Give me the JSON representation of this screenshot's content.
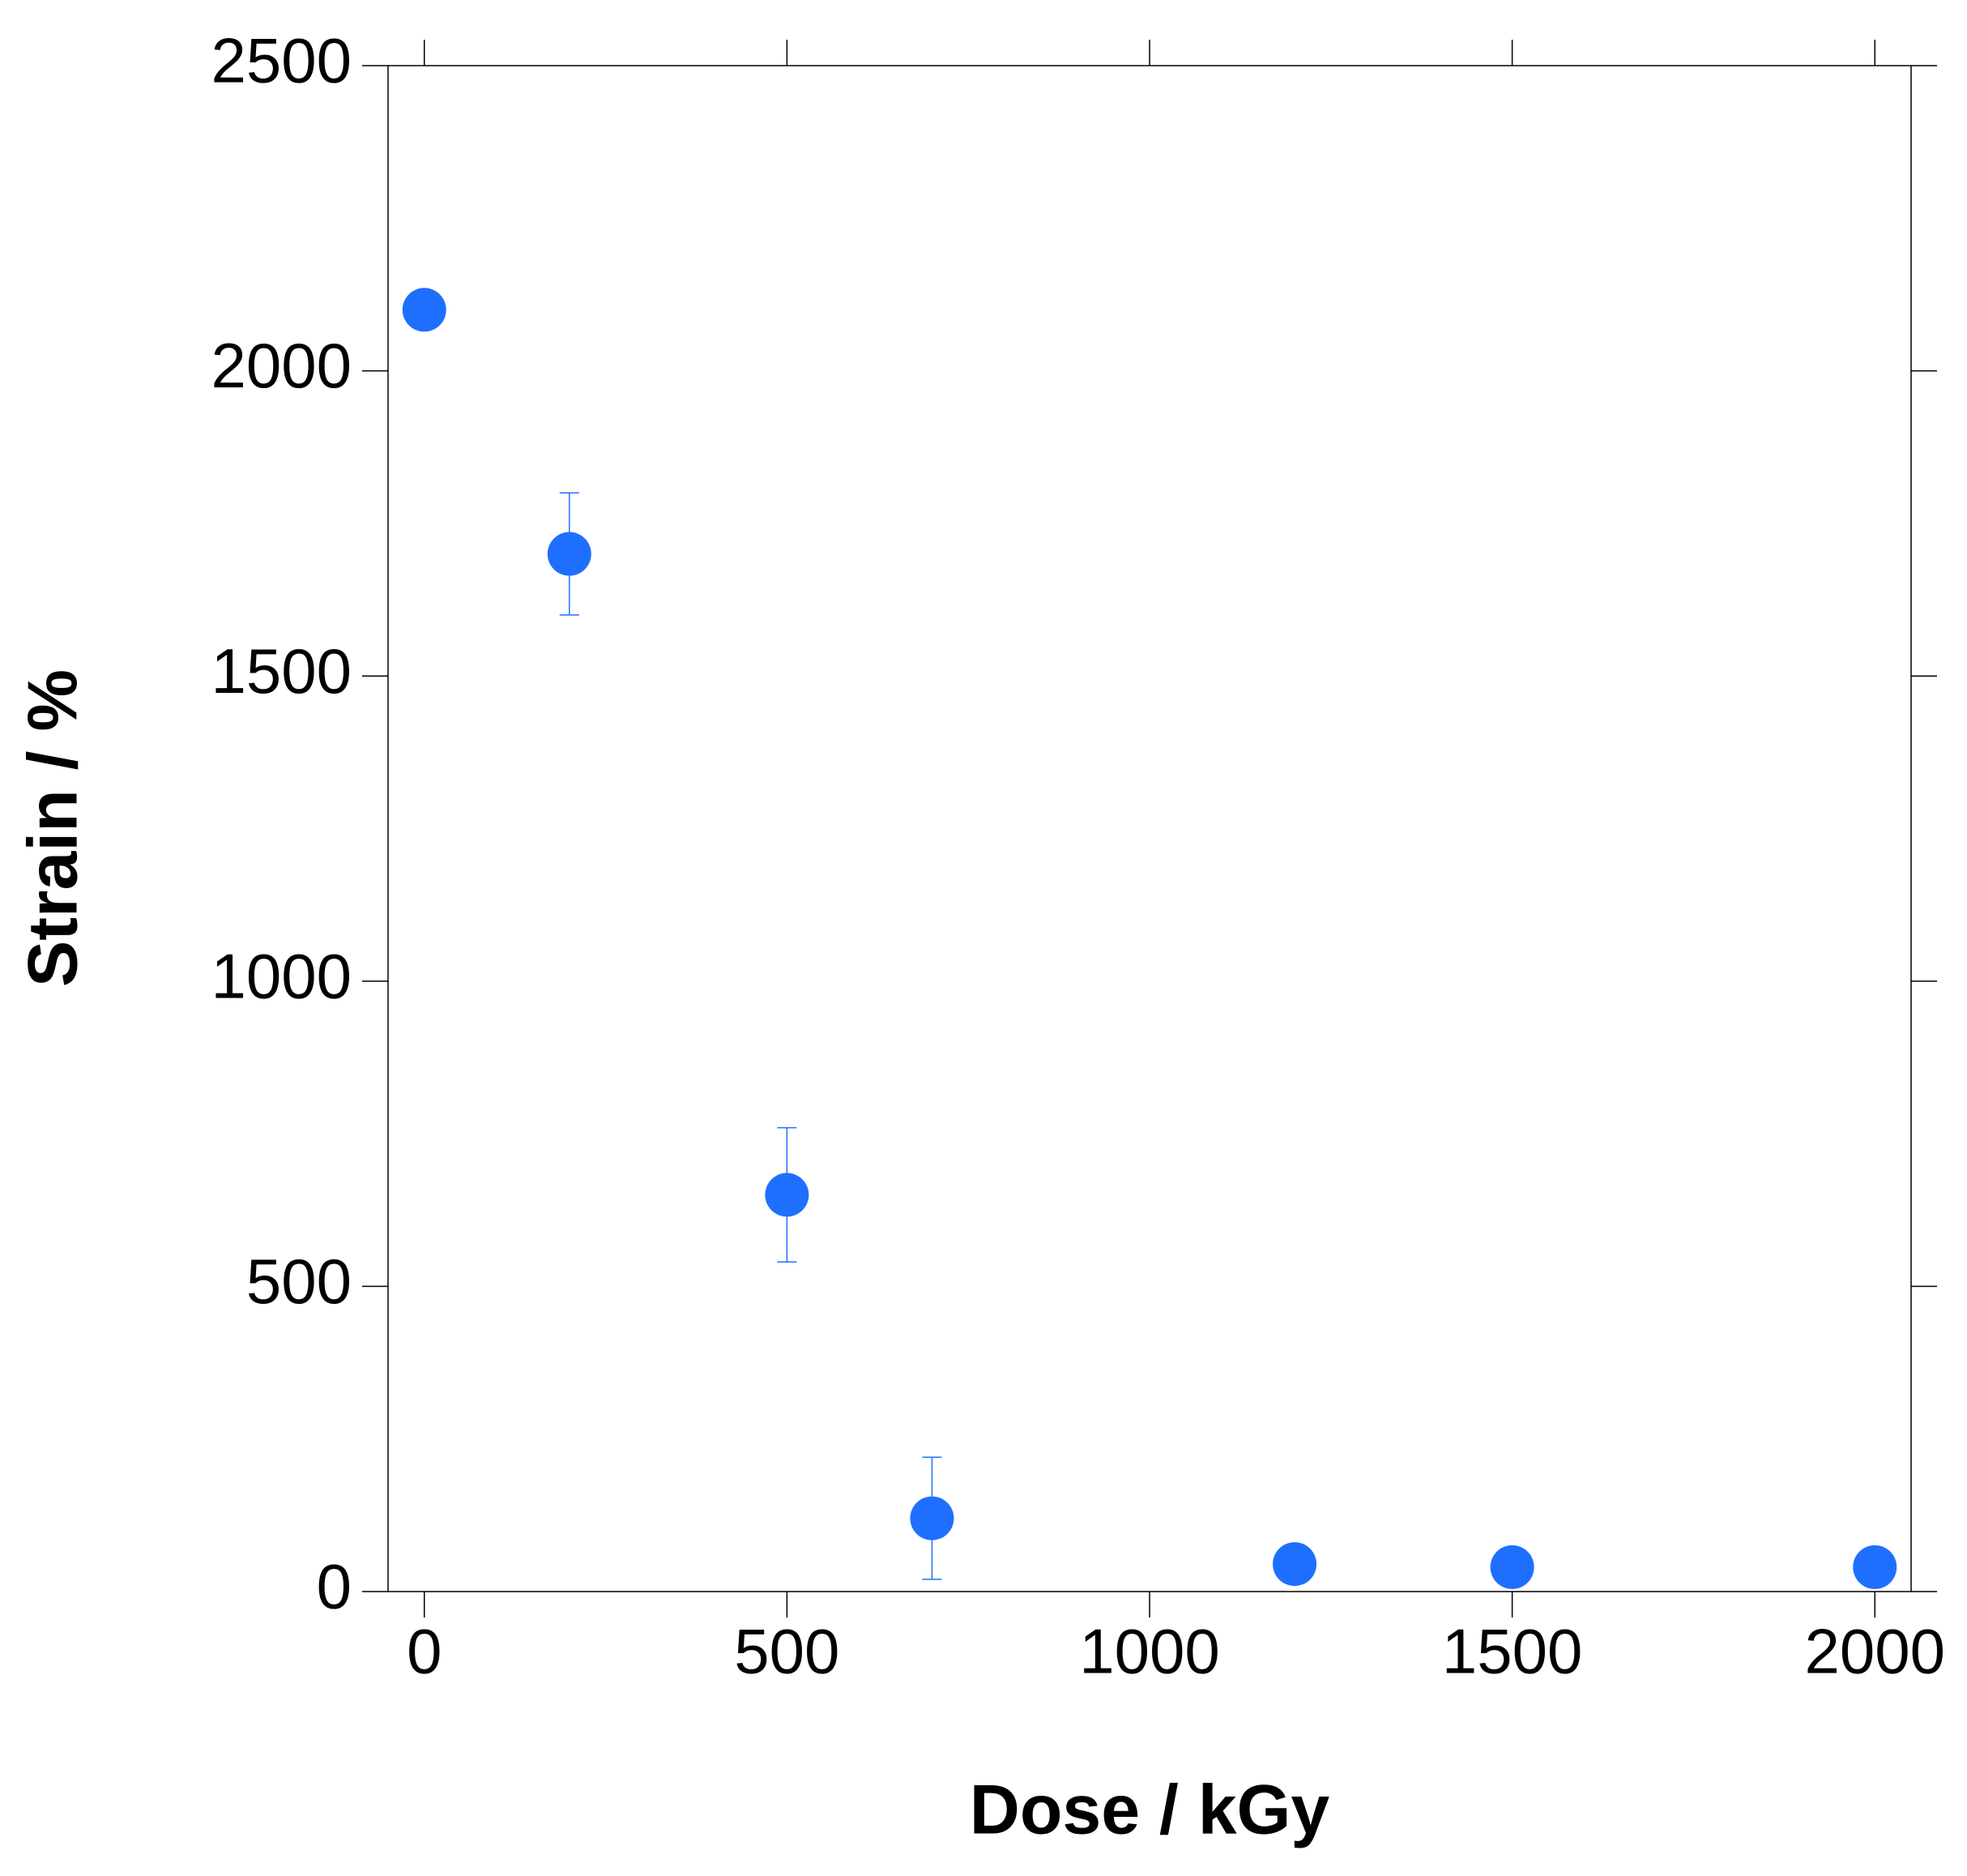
{
  "chart_data": {
    "type": "scatter",
    "x_label": "Dose / kGy",
    "y_label": "Strain / %",
    "x": [
      0,
      200,
      500,
      700,
      1200,
      1500,
      2000
    ],
    "series": [
      {
        "color": "#1f6fff",
        "values": [
          2100,
          1700,
          650,
          120,
          45,
          40,
          40
        ],
        "errors": [
          null,
          100,
          110,
          100,
          null,
          null,
          null
        ]
      }
    ],
    "xlim": [
      -50,
      2050
    ],
    "ylim": [
      0,
      2500
    ],
    "xticks": [
      0,
      500,
      1000,
      1500,
      2000
    ],
    "yticks": [
      0,
      500,
      1000,
      1500,
      2000,
      2500
    ]
  }
}
